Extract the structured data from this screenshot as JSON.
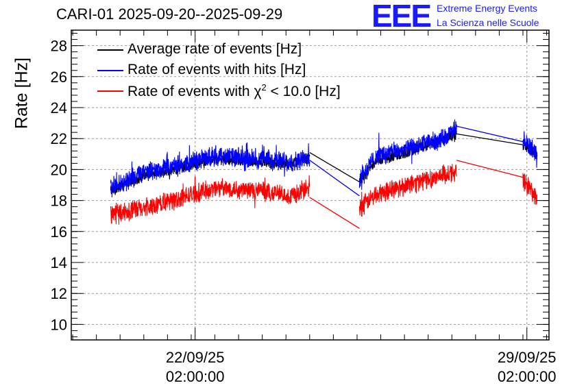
{
  "title": "CARI-01 2025-09-20--2025-09-29",
  "logo": {
    "text": "EEE",
    "line1": "Extreme Energy Events",
    "line2": "La Scienza nelle Scuole",
    "color": "#1a1aff"
  },
  "chart_data": {
    "type": "line",
    "title": "CARI-01 2025-09-20--2025-09-29",
    "ylabel": "Rate [Hz]",
    "xlabel": "",
    "ylim": [
      9,
      29
    ],
    "y_ticks": [
      10,
      12,
      14,
      16,
      18,
      20,
      22,
      24,
      26,
      28
    ],
    "x_unit": "days since 2025-09-20 00:00",
    "xlim": [
      -0.53,
      9.55
    ],
    "x_ticks": [
      {
        "x": 2.083,
        "label_date": "22/09/25",
        "label_time": "02:00:00"
      },
      {
        "x": 9.083,
        "label_date": "29/09/25",
        "label_time": "02:00:00"
      }
    ],
    "grid": true,
    "legend_position": "top-left",
    "series": [
      {
        "name": "Average rate of events [Hz]",
        "color": "#000000",
        "segments": [
          {
            "x": [
              0.3,
              1.0,
              1.8,
              2.5,
              3.3,
              4.1,
              4.5
            ],
            "y": [
              18.6,
              19.6,
              20.1,
              20.7,
              20.5,
              20.3,
              20.8
            ]
          },
          {
            "x": [
              5.55,
              5.9,
              6.4,
              6.9,
              7.3,
              7.6
            ],
            "y": [
              19.2,
              20.6,
              20.9,
              21.5,
              22.0,
              22.3
            ]
          },
          {
            "x": [
              9.0,
              9.15,
              9.3
            ],
            "y": [
              21.5,
              21.3,
              20.9
            ]
          }
        ],
        "bridges": [
          {
            "x": [
              4.5,
              5.55
            ],
            "y": [
              21.1,
              19.2
            ]
          },
          {
            "x": [
              7.6,
              9.0
            ],
            "y": [
              22.3,
              21.6
            ]
          }
        ],
        "noise": 0.3
      },
      {
        "name": "Rate of events with hits [Hz]",
        "color": "#0000ff",
        "segments": [
          {
            "x": [
              0.3,
              1.0,
              1.8,
              2.5,
              3.3,
              4.1,
              4.5
            ],
            "y": [
              18.8,
              19.8,
              20.3,
              20.9,
              20.7,
              20.5,
              20.7
            ]
          },
          {
            "x": [
              5.55,
              5.9,
              6.4,
              6.9,
              7.3,
              7.6
            ],
            "y": [
              19.3,
              20.9,
              21.2,
              21.6,
              22.0,
              22.6
            ]
          },
          {
            "x": [
              9.0,
              9.15,
              9.3
            ],
            "y": [
              21.8,
              21.5,
              20.7
            ]
          }
        ],
        "bridges": [
          {
            "x": [
              4.5,
              5.55
            ],
            "y": [
              20.6,
              18.3
            ]
          },
          {
            "x": [
              7.6,
              9.0
            ],
            "y": [
              22.8,
              21.8
            ]
          }
        ],
        "noise": 0.55
      },
      {
        "name": "Rate of events with χ² < 10.0 [Hz]",
        "color": "#ff0000",
        "segments": [
          {
            "x": [
              0.3,
              1.0,
              1.8,
              2.5,
              3.3,
              4.1,
              4.5
            ],
            "y": [
              17.2,
              17.5,
              18.2,
              18.8,
              18.7,
              18.3,
              18.8
            ]
          },
          {
            "x": [
              5.55,
              5.9,
              6.4,
              6.9,
              7.3,
              7.6
            ],
            "y": [
              17.5,
              18.4,
              18.9,
              19.3,
              19.6,
              19.9
            ]
          },
          {
            "x": [
              9.0,
              9.15,
              9.3
            ],
            "y": [
              19.3,
              18.8,
              18.0
            ]
          }
        ],
        "bridges": [
          {
            "x": [
              4.5,
              5.55
            ],
            "y": [
              18.2,
              16.2
            ]
          },
          {
            "x": [
              7.6,
              9.0
            ],
            "y": [
              20.6,
              19.5
            ]
          }
        ],
        "noise": 0.55
      }
    ]
  },
  "legend": [
    {
      "label_main": "Average rate of events [Hz]",
      "color": "#000000"
    },
    {
      "label_main": "Rate of events with hits [Hz]",
      "color": "#0000ff"
    },
    {
      "label_prefix": "Rate of events with ",
      "label_symbol": "χ",
      "label_sup": "2",
      "label_suffix": " < 10.0 [Hz]",
      "color": "#ff0000"
    }
  ]
}
